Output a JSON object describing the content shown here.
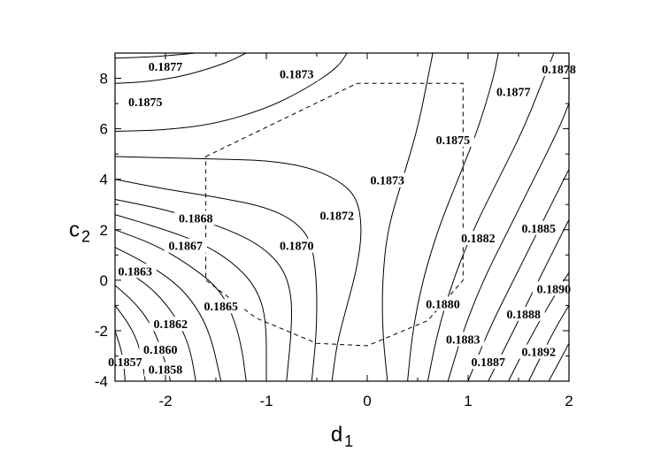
{
  "chart_data": {
    "type": "contour",
    "xlabel": {
      "main": "d",
      "sub": "1"
    },
    "ylabel": {
      "main": "c",
      "sub": "2"
    },
    "xlim": [
      -2.5,
      2.0
    ],
    "ylim": [
      -4,
      9
    ],
    "xticks": [
      -2,
      -1,
      0,
      1,
      2
    ],
    "yticks": [
      -4,
      -2,
      0,
      2,
      4,
      6,
      8
    ],
    "grid": false,
    "contour_labels": [
      {
        "text": "0.1877",
        "x": -2.0,
        "y": 8.4
      },
      {
        "text": "0.1875",
        "x": -2.2,
        "y": 7.0
      },
      {
        "text": "0.1873",
        "x": -0.7,
        "y": 8.1
      },
      {
        "text": "0.1878",
        "x": 1.9,
        "y": 8.3
      },
      {
        "text": "0.1877",
        "x": 1.45,
        "y": 7.4
      },
      {
        "text": "0.1875",
        "x": 0.85,
        "y": 5.5
      },
      {
        "text": "0.1873",
        "x": 0.2,
        "y": 3.9
      },
      {
        "text": "0.1872",
        "x": -0.3,
        "y": 2.5
      },
      {
        "text": "0.1868",
        "x": -1.7,
        "y": 2.4
      },
      {
        "text": "0.1867",
        "x": -1.8,
        "y": 1.3
      },
      {
        "text": "0.1870",
        "x": -0.7,
        "y": 1.3
      },
      {
        "text": "0.1863",
        "x": -2.3,
        "y": 0.3
      },
      {
        "text": "0.1865",
        "x": -1.45,
        "y": -1.1
      },
      {
        "text": "0.1862",
        "x": -1.95,
        "y": -1.8
      },
      {
        "text": "0.1860",
        "x": -2.05,
        "y": -2.8
      },
      {
        "text": "0.1857",
        "x": -2.4,
        "y": -3.3
      },
      {
        "text": "0.1858",
        "x": -2.0,
        "y": -3.6
      },
      {
        "text": "0.1882",
        "x": 1.1,
        "y": 1.6
      },
      {
        "text": "0.1885",
        "x": 1.7,
        "y": 2.0
      },
      {
        "text": "0.1880",
        "x": 0.75,
        "y": -1.0
      },
      {
        "text": "0.1890",
        "x": 1.85,
        "y": -0.4
      },
      {
        "text": "0.1888",
        "x": 1.55,
        "y": -1.4
      },
      {
        "text": "0.1883",
        "x": 0.95,
        "y": -2.4
      },
      {
        "text": "0.1887",
        "x": 1.2,
        "y": -3.3
      },
      {
        "text": "0.1892",
        "x": 1.7,
        "y": -2.9
      }
    ],
    "contours": [
      [
        [
          -2.5,
          8.8
        ],
        [
          -2.1,
          8.85
        ],
        [
          -1.7,
          9.0
        ]
      ],
      [
        [
          -2.5,
          7.8
        ],
        [
          -2.2,
          7.85
        ],
        [
          -1.8,
          8.1
        ],
        [
          -1.4,
          8.6
        ],
        [
          -1.2,
          9.0
        ]
      ],
      [
        [
          -2.5,
          5.9
        ],
        [
          -2.0,
          5.95
        ],
        [
          -1.5,
          6.2
        ],
        [
          -1.0,
          6.8
        ],
        [
          -0.6,
          7.6
        ],
        [
          -0.3,
          8.4
        ],
        [
          -0.2,
          9.0
        ]
      ],
      [
        [
          -2.5,
          4.9
        ],
        [
          -2.0,
          4.85
        ],
        [
          -1.5,
          4.8
        ],
        [
          -1.0,
          4.75
        ],
        [
          -0.6,
          4.5
        ],
        [
          -0.3,
          4.0
        ],
        [
          -0.1,
          3.3
        ],
        [
          -0.05,
          2.0
        ],
        [
          -0.1,
          0.5
        ],
        [
          -0.2,
          -1.0
        ],
        [
          -0.3,
          -2.5
        ],
        [
          -0.35,
          -4.0
        ]
      ],
      [
        [
          -2.5,
          4.0
        ],
        [
          -2.0,
          3.6
        ],
        [
          -1.5,
          3.3
        ],
        [
          -1.0,
          2.9
        ],
        [
          -0.7,
          2.3
        ],
        [
          -0.55,
          1.5
        ],
        [
          -0.5,
          0.0
        ],
        [
          -0.5,
          -2.0
        ],
        [
          -0.55,
          -4.0
        ]
      ],
      [
        [
          -2.5,
          3.2
        ],
        [
          -2.0,
          2.8
        ],
        [
          -1.5,
          2.2
        ],
        [
          -1.1,
          1.5
        ],
        [
          -0.85,
          0.6
        ],
        [
          -0.75,
          -0.5
        ],
        [
          -0.75,
          -2.0
        ],
        [
          -0.8,
          -4.0
        ]
      ],
      [
        [
          -2.5,
          2.6
        ],
        [
          -2.0,
          2.0
        ],
        [
          -1.6,
          1.4
        ],
        [
          -1.3,
          0.6
        ],
        [
          -1.1,
          -0.3
        ],
        [
          -1.0,
          -1.5
        ],
        [
          -1.0,
          -4.0
        ]
      ],
      [
        [
          -2.5,
          2.0
        ],
        [
          -2.1,
          1.4
        ],
        [
          -1.8,
          0.7
        ],
        [
          -1.5,
          -0.2
        ],
        [
          -1.35,
          -1.2
        ],
        [
          -1.25,
          -2.5
        ],
        [
          -1.2,
          -4.0
        ]
      ],
      [
        [
          -2.5,
          1.3
        ],
        [
          -2.2,
          0.7
        ],
        [
          -1.9,
          -0.1
        ],
        [
          -1.7,
          -1.0
        ],
        [
          -1.55,
          -2.2
        ],
        [
          -1.45,
          -4.0
        ]
      ],
      [
        [
          -2.5,
          0.6
        ],
        [
          -2.2,
          -0.1
        ],
        [
          -2.0,
          -0.9
        ],
        [
          -1.85,
          -1.8
        ],
        [
          -1.75,
          -2.8
        ],
        [
          -1.7,
          -4.0
        ]
      ],
      [
        [
          -2.5,
          -0.2
        ],
        [
          -2.3,
          -0.9
        ],
        [
          -2.15,
          -1.7
        ],
        [
          -2.05,
          -2.6
        ],
        [
          -1.95,
          -4.0
        ]
      ],
      [
        [
          -2.5,
          -1.0
        ],
        [
          -2.35,
          -1.8
        ],
        [
          -2.25,
          -2.7
        ],
        [
          -2.2,
          -4.0
        ]
      ],
      [
        [
          -2.5,
          -2.0
        ],
        [
          -2.42,
          -3.0
        ],
        [
          -2.4,
          -4.0
        ]
      ],
      [
        [
          0.2,
          -4.0
        ],
        [
          0.15,
          -2.0
        ],
        [
          0.15,
          0.0
        ],
        [
          0.2,
          2.0
        ],
        [
          0.35,
          4.0
        ],
        [
          0.5,
          6.0
        ],
        [
          0.6,
          8.0
        ],
        [
          0.65,
          9.0
        ]
      ],
      [
        [
          0.4,
          -4.0
        ],
        [
          0.45,
          -2.0
        ],
        [
          0.55,
          0.0
        ],
        [
          0.7,
          2.0
        ],
        [
          0.9,
          4.0
        ],
        [
          1.1,
          6.0
        ],
        [
          1.25,
          8.0
        ],
        [
          1.3,
          9.0
        ]
      ],
      [
        [
          0.6,
          -4.0
        ],
        [
          0.7,
          -2.0
        ],
        [
          0.85,
          0.0
        ],
        [
          1.05,
          2.0
        ],
        [
          1.3,
          4.0
        ],
        [
          1.55,
          6.0
        ],
        [
          1.75,
          8.0
        ],
        [
          1.85,
          9.0
        ]
      ],
      [
        [
          0.8,
          -4.0
        ],
        [
          0.95,
          -2.0
        ],
        [
          1.15,
          0.0
        ],
        [
          1.4,
          2.0
        ],
        [
          1.65,
          4.0
        ],
        [
          1.9,
          6.0
        ],
        [
          2.0,
          7.0
        ]
      ],
      [
        [
          1.0,
          -4.0
        ],
        [
          1.2,
          -2.0
        ],
        [
          1.45,
          0.0
        ],
        [
          1.7,
          2.0
        ],
        [
          1.95,
          4.0
        ],
        [
          2.0,
          4.4
        ]
      ],
      [
        [
          1.2,
          -4.0
        ],
        [
          1.45,
          -2.0
        ],
        [
          1.7,
          0.0
        ],
        [
          1.95,
          2.0
        ],
        [
          2.0,
          2.4
        ]
      ],
      [
        [
          1.4,
          -4.0
        ],
        [
          1.65,
          -2.0
        ],
        [
          1.95,
          0.0
        ],
        [
          2.0,
          0.3
        ]
      ],
      [
        [
          1.6,
          -4.0
        ],
        [
          1.85,
          -2.0
        ],
        [
          2.0,
          -1.0
        ]
      ],
      [
        [
          1.8,
          -4.0
        ],
        [
          2.0,
          -2.5
        ]
      ]
    ],
    "feasible_region": [
      [
        -1.6,
        4.9
      ],
      [
        -0.1,
        7.8
      ],
      [
        0.95,
        7.8
      ],
      [
        0.95,
        0.0
      ],
      [
        0.6,
        -1.6
      ],
      [
        0.0,
        -2.6
      ],
      [
        -0.5,
        -2.5
      ],
      [
        -1.1,
        -1.5
      ],
      [
        -1.6,
        0.0
      ],
      [
        -1.6,
        4.9
      ]
    ]
  }
}
